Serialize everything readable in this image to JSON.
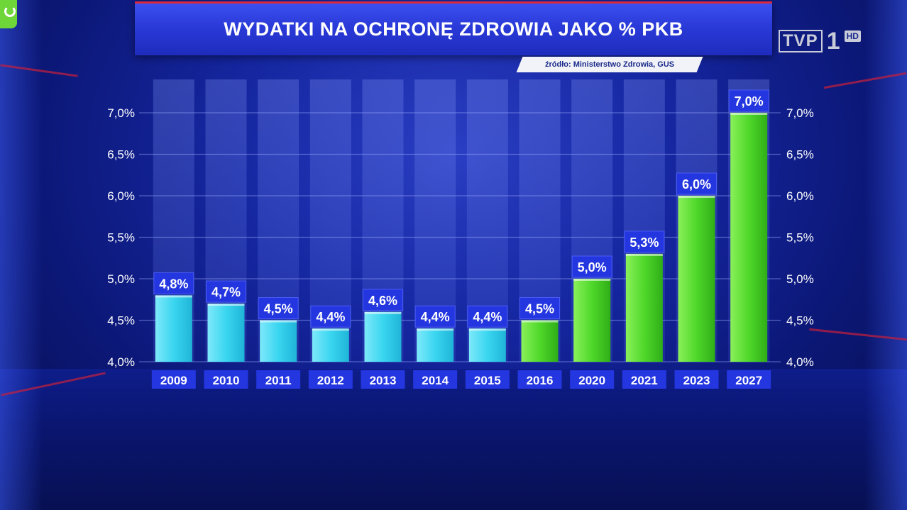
{
  "header": {
    "title": "WYDATKI NA OCHRONĘ ZDROWIA JAKO % PKB",
    "source": "źródło: Ministerstwo Zdrowia, GUS"
  },
  "logo": {
    "channel": "TVP",
    "number": "1",
    "badge": "HD"
  },
  "colors": {
    "bar_blue": "#3ad6f0",
    "bar_green": "#4fd82a",
    "label_bg": "#2436e0",
    "title_bg": "#2a3ad8",
    "accent_red": "#d82a3e"
  },
  "chart_data": {
    "type": "bar",
    "title": "WYDATKI NA OCHRONĘ ZDROWIA JAKO % PKB",
    "categories": [
      "2009",
      "2010",
      "2011",
      "2012",
      "2013",
      "2014",
      "2015",
      "2016",
      "2020",
      "2021",
      "2023",
      "2027"
    ],
    "values": [
      4.8,
      4.7,
      4.5,
      4.4,
      4.6,
      4.4,
      4.4,
      4.5,
      5.0,
      5.3,
      6.0,
      7.0
    ],
    "value_labels": [
      "4,8%",
      "4,7%",
      "4,5%",
      "4,4%",
      "4,6%",
      "4,4%",
      "4,4%",
      "4,5%",
      "5,0%",
      "5,3%",
      "6,0%",
      "7,0%"
    ],
    "bar_colors": [
      "blue",
      "blue",
      "blue",
      "blue",
      "blue",
      "blue",
      "blue",
      "green",
      "green",
      "green",
      "green",
      "green"
    ],
    "ylim": [
      4.0,
      7.0
    ],
    "yticks": [
      4.0,
      4.5,
      5.0,
      5.5,
      6.0,
      6.5,
      7.0
    ],
    "ytick_labels": [
      "4,0%",
      "4,5%",
      "5,0%",
      "5,5%",
      "6,0%",
      "6,5%",
      "7,0%"
    ],
    "y_axis_both_sides": true,
    "grid": true,
    "xlabel": "",
    "ylabel": ""
  }
}
